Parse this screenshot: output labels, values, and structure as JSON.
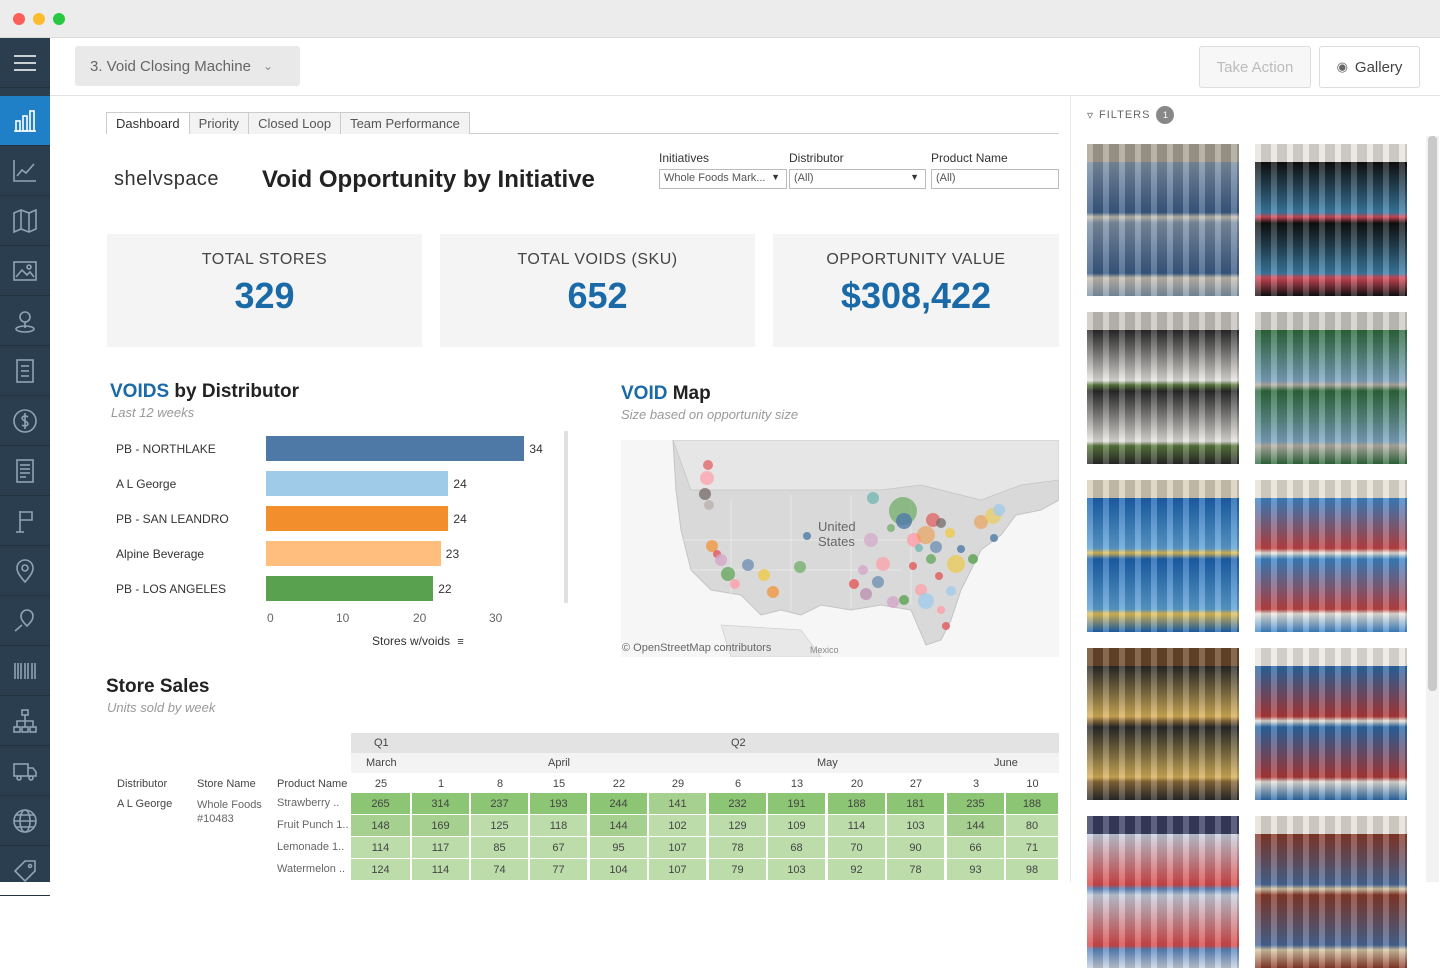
{
  "window": {
    "title": ""
  },
  "workbook": {
    "selected": "3. Void Closing Machine"
  },
  "toolbar": {
    "take_action": "Take Action",
    "gallery": "Gallery"
  },
  "tabs": [
    "Dashboard",
    "Priority",
    "Closed Loop",
    "Team Performance"
  ],
  "brand": {
    "name": "shelvspace"
  },
  "dashboard_title": "Void Opportunity by Initiative",
  "filters": [
    {
      "label": "Initiatives",
      "value": "Whole Foods Mark..."
    },
    {
      "label": "Distributor",
      "value": "(All)"
    },
    {
      "label": "Product Name",
      "value": "(All)"
    }
  ],
  "kpis": [
    {
      "label": "TOTAL STORES",
      "value": "329"
    },
    {
      "label": "TOTAL VOIDS (SKU)",
      "value": "652"
    },
    {
      "label": "OPPORTUNITY VALUE",
      "value": "$308,422"
    }
  ],
  "voids_chart": {
    "title_highlight": "VOIDS",
    "title_rest": " by Distributor",
    "subtitle": "Last 12 weeks",
    "xlabel": "Stores w/voids",
    "ticks": [
      "0",
      "10",
      "20",
      "30"
    ]
  },
  "chart_data": {
    "type": "bar",
    "orientation": "horizontal",
    "categories": [
      "PB - NORTHLAKE",
      "A L George",
      "PB - SAN LEANDRO",
      "Alpine Beverage",
      "PB - LOS ANGELES"
    ],
    "values": [
      34,
      24,
      24,
      23,
      22
    ],
    "colors": [
      "#4e79a7",
      "#a0cbe8",
      "#f28e2b",
      "#ffbe7d",
      "#59a14f"
    ],
    "xlabel": "Stores w/voids",
    "xlim": [
      0,
      37
    ],
    "xticks": [
      0,
      10,
      20,
      30
    ],
    "title": "VOIDS by Distributor"
  },
  "void_map": {
    "title_highlight": "VOID",
    "title_rest": " Map",
    "subtitle": "Size based on opportunity size",
    "label": "United States",
    "attribution": "© OpenStreetMap contributors",
    "mexico": "Mexico"
  },
  "store_sales": {
    "title": "Store Sales",
    "subtitle": "Units sold by week",
    "quarters": [
      "Q1",
      "Q2"
    ],
    "months": [
      "March",
      "April",
      "May",
      "June"
    ],
    "weeks": [
      "25",
      "1",
      "8",
      "15",
      "22",
      "29",
      "6",
      "13",
      "20",
      "27",
      "3",
      "10"
    ],
    "headers": [
      "Distributor",
      "Store Name",
      "Product Name"
    ],
    "distributor": "A L George",
    "store": "Whole Foods #10483",
    "rows": [
      {
        "product": "Strawberry ..",
        "values": [
          265,
          314,
          237,
          193,
          244,
          141,
          232,
          191,
          188,
          181,
          235,
          188
        ]
      },
      {
        "product": "Fruit Punch 1..",
        "values": [
          148,
          169,
          125,
          118,
          144,
          102,
          129,
          109,
          114,
          103,
          144,
          80
        ]
      },
      {
        "product": "Lemonade 1..",
        "values": [
          114,
          117,
          85,
          67,
          95,
          107,
          78,
          68,
          70,
          90,
          66,
          71
        ]
      },
      {
        "product": "Watermelon ..",
        "values": [
          124,
          114,
          74,
          77,
          104,
          107,
          79,
          103,
          92,
          78,
          93,
          98
        ]
      }
    ]
  },
  "gallery_panel": {
    "filters_label": "FILTERS",
    "filter_count": "1"
  }
}
